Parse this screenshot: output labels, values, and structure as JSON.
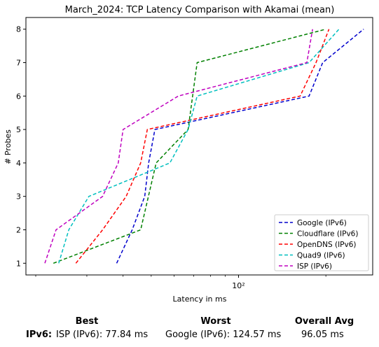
{
  "chart_data": {
    "type": "line",
    "title": "March_2024: TCP Latency Comparison with Akamai (mean)",
    "xlabel": "Latency in ms",
    "ylabel": "# Probes",
    "xscale": "log",
    "xlim": [
      18.5,
      290
    ],
    "ylim": [
      0.65,
      8.35
    ],
    "xticks": [
      {
        "value": 100,
        "label": "10²"
      }
    ],
    "yticks": [
      1,
      2,
      3,
      4,
      5,
      6,
      7,
      8
    ],
    "grid": false,
    "legend_position": "lower-right",
    "line_style": "dashed",
    "series": [
      {
        "name": "Google (IPv6)",
        "color": "#0000cc",
        "points": [
          [
            38,
            1
          ],
          [
            43,
            2
          ],
          [
            47.5,
            3
          ],
          [
            49,
            4
          ],
          [
            51.5,
            5
          ],
          [
            175,
            6
          ],
          [
            195,
            7
          ],
          [
            270,
            8
          ]
        ]
      },
      {
        "name": "Cloudflare (IPv6)",
        "color": "#008000",
        "points": [
          [
            23,
            1
          ],
          [
            46,
            2
          ],
          [
            52,
            4
          ],
          [
            67,
            5
          ],
          [
            72,
            7
          ],
          [
            200,
            8
          ]
        ]
      },
      {
        "name": "OpenDNS (IPv6)",
        "color": "#ff0000",
        "points": [
          [
            27.5,
            1
          ],
          [
            34,
            2
          ],
          [
            41,
            3
          ],
          [
            46,
            4
          ],
          [
            48.5,
            5
          ],
          [
            163,
            6
          ],
          [
            185,
            7
          ],
          [
            205,
            8
          ]
        ]
      },
      {
        "name": "Quad9 (IPv6)",
        "color": "#00bfbf",
        "points": [
          [
            24,
            1
          ],
          [
            26,
            2
          ],
          [
            30.5,
            3
          ],
          [
            58,
            4
          ],
          [
            67,
            5
          ],
          [
            72,
            6
          ],
          [
            175,
            7
          ],
          [
            222,
            8
          ]
        ]
      },
      {
        "name": "ISP (IPv6)",
        "color": "#bf00bf",
        "points": [
          [
            21.5,
            1
          ],
          [
            23.5,
            2
          ],
          [
            34,
            3
          ],
          [
            38.5,
            4
          ],
          [
            40,
            5
          ],
          [
            62,
            6
          ],
          [
            172,
            7
          ],
          [
            180,
            8
          ]
        ]
      }
    ]
  },
  "summary": {
    "headers": {
      "best": "Best",
      "worst": "Worst",
      "overall": "Overall Avg"
    },
    "row_label": "IPv6:",
    "best": "ISP (IPv6): 77.84 ms",
    "worst": "Google (IPv6): 124.57 ms",
    "overall": "96.05 ms"
  }
}
